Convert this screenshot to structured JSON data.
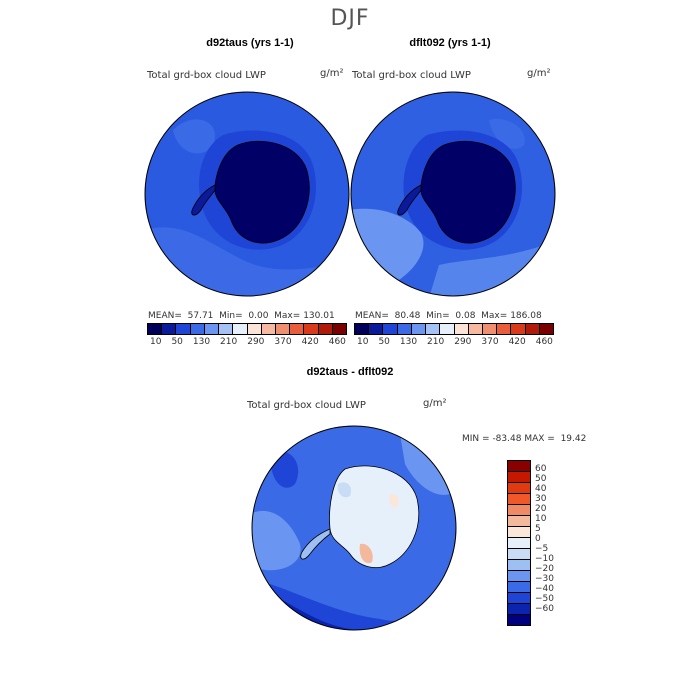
{
  "figure_title": "DJF",
  "chart_data": [
    {
      "type": "heatmap",
      "title": "d92taus (yrs 1-1)",
      "field": "Total grd-box cloud LWP",
      "units": "g/m²",
      "projection": "polar stereographic (south pole)",
      "stats": {
        "mean_label": "MEAN=",
        "mean": "57.71",
        "min_label": "Min=",
        "min": "0.00",
        "max_label": "Max=",
        "max": "130.01"
      },
      "colorbar_ticks": [
        "10",
        "50",
        "130",
        "210",
        "290",
        "370",
        "420",
        "460"
      ]
    },
    {
      "type": "heatmap",
      "title": "dflt092 (yrs 1-1)",
      "field": "Total grd-box cloud LWP",
      "units": "g/m²",
      "projection": "polar stereographic (south pole)",
      "stats": {
        "mean_label": "MEAN=",
        "mean": "80.48",
        "min_label": "Min=",
        "min": "0.08",
        "max_label": "Max=",
        "max": "186.08"
      },
      "colorbar_ticks": [
        "10",
        "50",
        "130",
        "210",
        "290",
        "370",
        "420",
        "460"
      ]
    },
    {
      "type": "heatmap",
      "title": "d92taus - dflt092",
      "field": "Total grd-box cloud LWP",
      "units": "g/m²",
      "projection": "polar stereographic (south pole)",
      "stats": {
        "min_label": "MIN =",
        "min": "-83.48",
        "max_label": "MAX =",
        "max": "19.42"
      },
      "colorbar_levels": [
        "60",
        "50",
        "40",
        "30",
        "20",
        "10",
        "5",
        "0",
        "-5",
        "-10",
        "-20",
        "-30",
        "-40",
        "-50",
        "-60"
      ]
    }
  ],
  "colors": {
    "abs_scale": [
      "#00005a",
      "#0a1a9a",
      "#1f45d6",
      "#3a6ae6",
      "#6a95f0",
      "#a5c2f6",
      "#e6f0fb",
      "#fbe3d8",
      "#f6b9a0",
      "#f08f6f",
      "#e85e3c",
      "#d83a1a",
      "#b01a08",
      "#7a0000"
    ],
    "diff_scale": [
      "#8a0000",
      "#c41800",
      "#e23a10",
      "#f0582a",
      "#f08a64",
      "#f4b89c",
      "#fbe6da",
      "#e6f0fb",
      "#c8dcf6",
      "#9ebff2",
      "#6a95f0",
      "#3a6ae6",
      "#1f45d6",
      "#0a24b0",
      "#000080"
    ],
    "land_deep": "#000066",
    "ocean_abs": "#2a5ae0",
    "ocean_diff": "#3a6ae6"
  }
}
